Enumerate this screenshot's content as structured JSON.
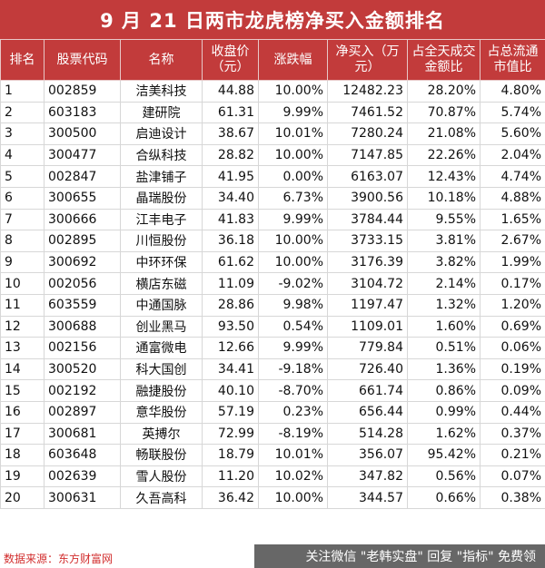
{
  "title": "9 月 21 日两市龙虎榜净买入金额排名",
  "headers": {
    "rank": "排名",
    "code": "股票代码",
    "name": "名称",
    "close": "收盘价（元）",
    "change": "涨跌幅",
    "net_buy": "净买入（万元）",
    "turnover_ratio": "占全天成交金额比",
    "float_ratio": "占总流通市值比"
  },
  "rows": [
    {
      "rank": "1",
      "code": "002859",
      "name": "洁美科技",
      "close": "44.88",
      "change": "10.00%",
      "net_buy": "12482.23",
      "turnover_ratio": "28.20%",
      "float_ratio": "4.80%"
    },
    {
      "rank": "2",
      "code": "603183",
      "name": "建研院",
      "close": "61.31",
      "change": "9.99%",
      "net_buy": "7461.52",
      "turnover_ratio": "70.87%",
      "float_ratio": "5.74%"
    },
    {
      "rank": "3",
      "code": "300500",
      "name": "启迪设计",
      "close": "38.67",
      "change": "10.01%",
      "net_buy": "7280.24",
      "turnover_ratio": "21.08%",
      "float_ratio": "5.60%"
    },
    {
      "rank": "4",
      "code": "300477",
      "name": "合纵科技",
      "close": "28.82",
      "change": "10.00%",
      "net_buy": "7147.85",
      "turnover_ratio": "22.26%",
      "float_ratio": "2.04%"
    },
    {
      "rank": "5",
      "code": "002847",
      "name": "盐津铺子",
      "close": "41.95",
      "change": "0.00%",
      "net_buy": "6163.07",
      "turnover_ratio": "12.43%",
      "float_ratio": "4.74%"
    },
    {
      "rank": "6",
      "code": "300655",
      "name": "晶瑞股份",
      "close": "34.40",
      "change": "6.73%",
      "net_buy": "3900.56",
      "turnover_ratio": "10.18%",
      "float_ratio": "4.88%"
    },
    {
      "rank": "7",
      "code": "300666",
      "name": "江丰电子",
      "close": "41.83",
      "change": "9.99%",
      "net_buy": "3784.44",
      "turnover_ratio": "9.55%",
      "float_ratio": "1.65%"
    },
    {
      "rank": "8",
      "code": "002895",
      "name": "川恒股份",
      "close": "36.18",
      "change": "10.00%",
      "net_buy": "3733.15",
      "turnover_ratio": "3.81%",
      "float_ratio": "2.67%"
    },
    {
      "rank": "9",
      "code": "300692",
      "name": "中环环保",
      "close": "61.62",
      "change": "10.00%",
      "net_buy": "3176.39",
      "turnover_ratio": "3.82%",
      "float_ratio": "1.99%"
    },
    {
      "rank": "10",
      "code": "002056",
      "name": "横店东磁",
      "close": "11.09",
      "change": "-9.02%",
      "net_buy": "3104.72",
      "turnover_ratio": "2.14%",
      "float_ratio": "0.17%"
    },
    {
      "rank": "11",
      "code": "603559",
      "name": "中通国脉",
      "close": "28.86",
      "change": "9.98%",
      "net_buy": "1197.47",
      "turnover_ratio": "1.32%",
      "float_ratio": "1.20%"
    },
    {
      "rank": "12",
      "code": "300688",
      "name": "创业黑马",
      "close": "93.50",
      "change": "0.54%",
      "net_buy": "1109.01",
      "turnover_ratio": "1.60%",
      "float_ratio": "0.69%"
    },
    {
      "rank": "13",
      "code": "002156",
      "name": "通富微电",
      "close": "12.66",
      "change": "9.99%",
      "net_buy": "779.84",
      "turnover_ratio": "0.51%",
      "float_ratio": "0.06%"
    },
    {
      "rank": "14",
      "code": "300520",
      "name": "科大国创",
      "close": "34.41",
      "change": "-9.18%",
      "net_buy": "726.40",
      "turnover_ratio": "1.36%",
      "float_ratio": "0.19%"
    },
    {
      "rank": "15",
      "code": "002192",
      "name": "融捷股份",
      "close": "40.10",
      "change": "-8.70%",
      "net_buy": "661.74",
      "turnover_ratio": "0.86%",
      "float_ratio": "0.09%"
    },
    {
      "rank": "16",
      "code": "002897",
      "name": "意华股份",
      "close": "57.19",
      "change": "0.23%",
      "net_buy": "656.44",
      "turnover_ratio": "0.99%",
      "float_ratio": "0.44%"
    },
    {
      "rank": "17",
      "code": "300681",
      "name": "英搏尔",
      "close": "72.99",
      "change": "-8.19%",
      "net_buy": "514.28",
      "turnover_ratio": "1.62%",
      "float_ratio": "0.37%"
    },
    {
      "rank": "18",
      "code": "603648",
      "name": "畅联股份",
      "close": "18.79",
      "change": "10.01%",
      "net_buy": "356.07",
      "turnover_ratio": "95.42%",
      "float_ratio": "0.21%"
    },
    {
      "rank": "19",
      "code": "002639",
      "name": "雪人股份",
      "close": "11.20",
      "change": "10.02%",
      "net_buy": "347.82",
      "turnover_ratio": "0.56%",
      "float_ratio": "0.07%"
    },
    {
      "rank": "20",
      "code": "300631",
      "name": "久吾高科",
      "close": "36.42",
      "change": "10.00%",
      "net_buy": "344.57",
      "turnover_ratio": "0.66%",
      "float_ratio": "0.38%"
    }
  ],
  "footer": {
    "source": "数据来源：东方财富网",
    "promo": "关注微信 \"老韩实盘\" 回复 \"指标\" 免费领"
  },
  "colors": {
    "header_bg": "#c23b3b",
    "source_text": "#d22f2f"
  }
}
